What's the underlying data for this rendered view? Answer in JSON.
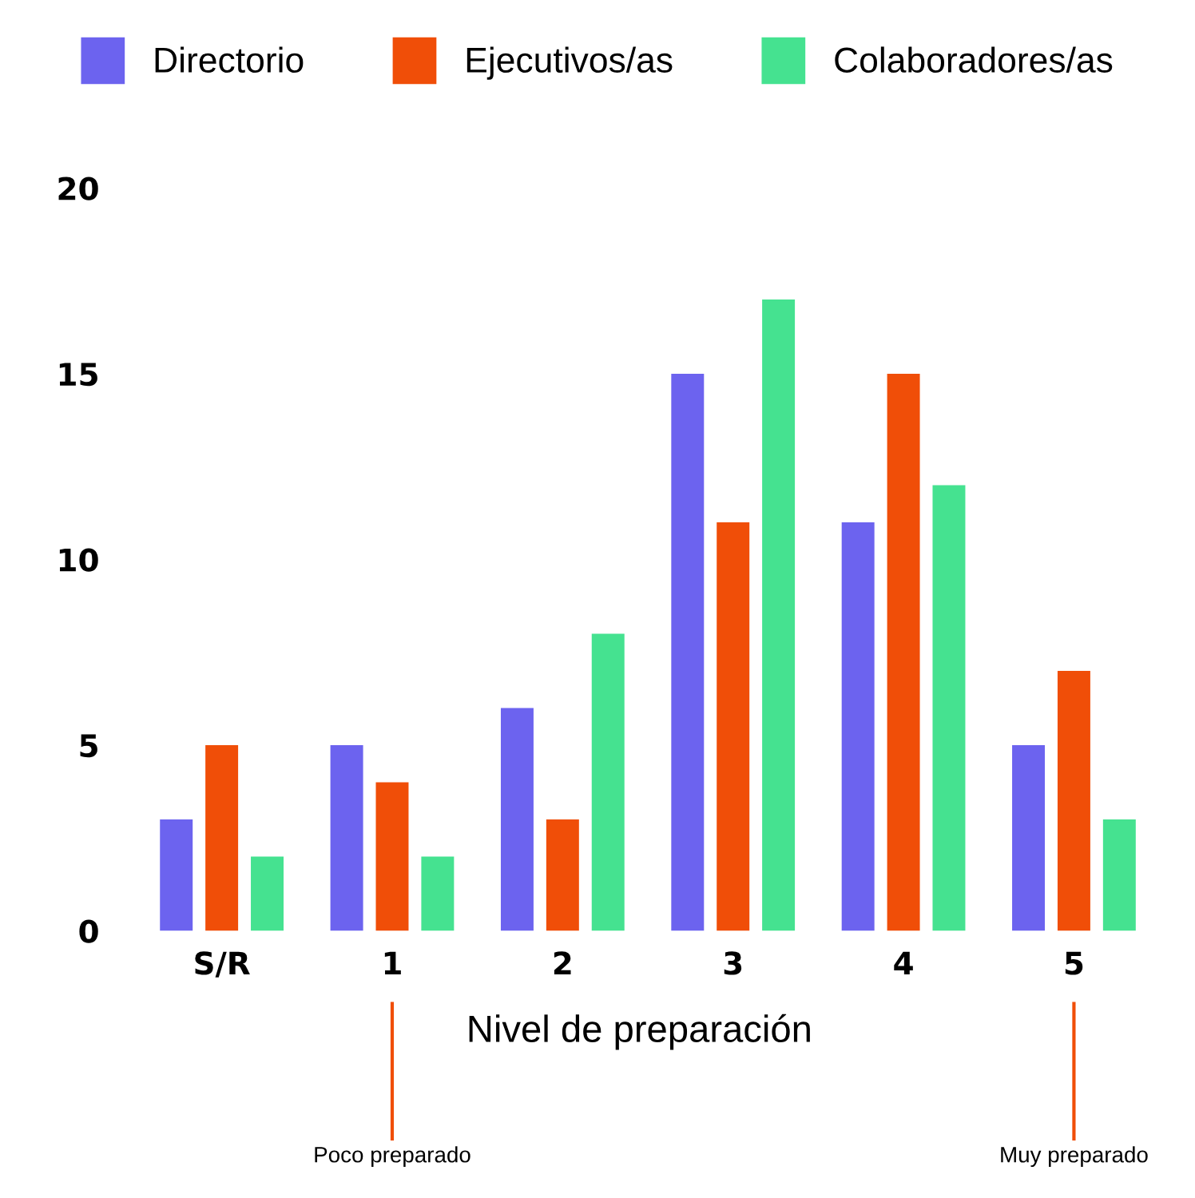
{
  "chart_data": {
    "type": "bar",
    "xlabel": "Nivel de preparación",
    "categories": [
      "S/R",
      "1",
      "2",
      "3",
      "4",
      "5"
    ],
    "series": [
      {
        "name": "Directorio",
        "color": "#6c63ef",
        "values": [
          3,
          5,
          6,
          15,
          11,
          5
        ]
      },
      {
        "name": "Ejecutivos/as",
        "color": "#f04e08",
        "values": [
          5,
          4,
          3,
          11,
          15,
          7
        ]
      },
      {
        "name": "Colaboradores/as",
        "color": "#45e290",
        "values": [
          2,
          2,
          8,
          17,
          12,
          3
        ]
      }
    ],
    "ylim": [
      0,
      20
    ],
    "yticks": [
      0,
      5,
      10,
      15,
      20
    ],
    "grid": false,
    "legend": "top",
    "annotations": [
      {
        "text": "Poco preparado",
        "x": "1"
      },
      {
        "text": "Muy preparado",
        "x": "5"
      }
    ]
  }
}
